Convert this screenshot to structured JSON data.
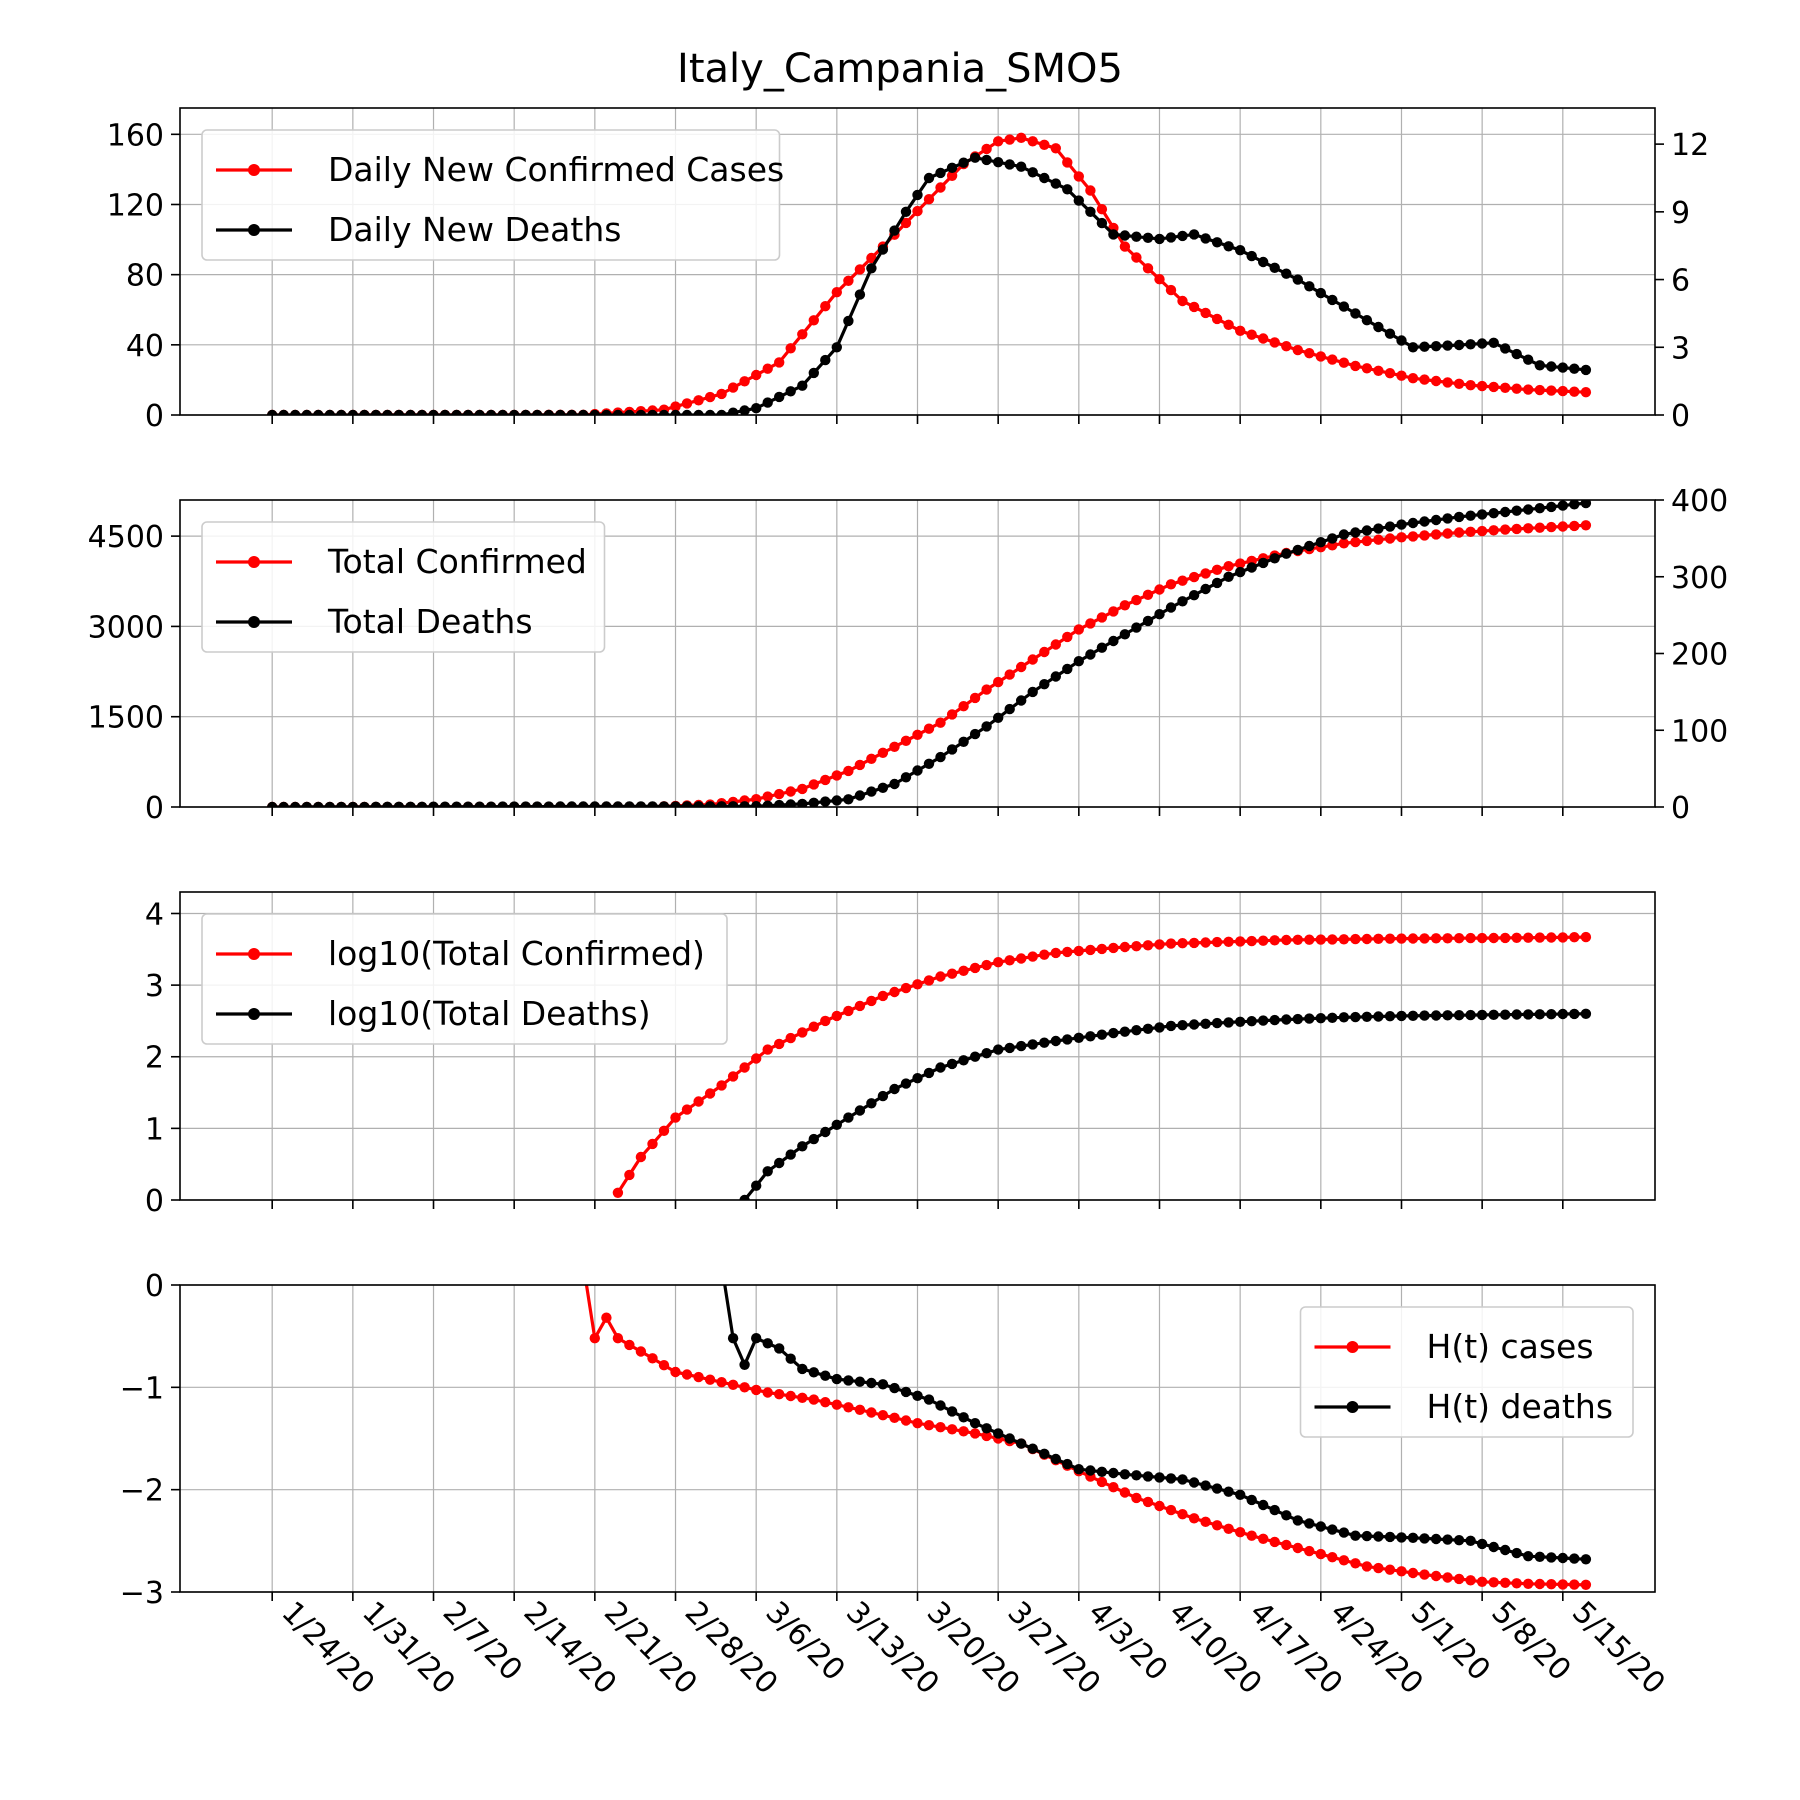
{
  "colors": {
    "cases": "#ff0000",
    "deaths": "#000000",
    "grid": "#b0b0b0"
  },
  "chart_data": [
    {
      "type": "line",
      "title": "Italy_Campania_SMO5",
      "x_dates": [
        "1/24/20",
        "1/31/20",
        "2/7/20",
        "2/14/20",
        "2/21/20",
        "2/28/20",
        "3/6/20",
        "3/13/20",
        "3/20/20",
        "3/27/20",
        "4/3/20",
        "4/10/20",
        "4/17/20",
        "4/24/20",
        "5/1/20",
        "5/8/20",
        "5/15/20"
      ],
      "x_range": [
        "1/16/20",
        "5/23/20"
      ],
      "legend": "upper-left",
      "grid": true,
      "left_axis": {
        "ylim": [
          0,
          175
        ],
        "ticks": [
          "0",
          "40",
          "80",
          "120",
          "160"
        ]
      },
      "right_axis": {
        "ylim": [
          0,
          13.6
        ],
        "ticks": [
          "0",
          "3",
          "6",
          "9",
          "12"
        ]
      },
      "series": [
        {
          "name": "Daily New Confirmed Cases",
          "axis": "left",
          "color": "#ff0000",
          "points": [
            [
              "1/24/20",
              0
            ],
            [
              "2/20/20",
              0.1
            ],
            [
              "2/27/20",
              3
            ],
            [
              "3/3/20",
              12
            ],
            [
              "3/8/20",
              30
            ],
            [
              "3/13/20",
              70
            ],
            [
              "3/17/20",
              96
            ],
            [
              "3/21/20",
              123
            ],
            [
              "3/24/20",
              143
            ],
            [
              "3/27/20",
              156
            ],
            [
              "3/29/20",
              158
            ],
            [
              "4/1/20",
              152
            ],
            [
              "4/4/20",
              128
            ],
            [
              "4/7/20",
              96
            ],
            [
              "4/12/20",
              65
            ],
            [
              "4/17/20",
              48
            ],
            [
              "4/22/20",
              37
            ],
            [
              "4/27/20",
              28
            ],
            [
              "5/2/20",
              21
            ],
            [
              "5/7/20",
              17
            ],
            [
              "5/12/20",
              14.5
            ],
            [
              "5/17/20",
              13
            ]
          ]
        },
        {
          "name": "Daily New Deaths",
          "axis": "right",
          "color": "#000000",
          "points": [
            [
              "1/24/20",
              0
            ],
            [
              "3/3/20",
              0
            ],
            [
              "3/6/20",
              0.3
            ],
            [
              "3/10/20",
              1.3
            ],
            [
              "3/13/20",
              3
            ],
            [
              "3/16/20",
              6.5
            ],
            [
              "3/19/20",
              9
            ],
            [
              "3/21/20",
              10.5
            ],
            [
              "3/25/20",
              11.4
            ],
            [
              "3/29/20",
              11
            ],
            [
              "4/2/20",
              10
            ],
            [
              "4/6/20",
              8
            ],
            [
              "4/10/20",
              7.8
            ],
            [
              "4/13/20",
              8
            ],
            [
              "4/17/20",
              7.3
            ],
            [
              "4/22/20",
              6
            ],
            [
              "4/27/20",
              4.5
            ],
            [
              "5/2/20",
              3
            ],
            [
              "5/6/20",
              3.1
            ],
            [
              "5/9/20",
              3.2
            ],
            [
              "5/13/20",
              2.2
            ],
            [
              "5/17/20",
              2
            ]
          ]
        }
      ]
    },
    {
      "type": "line",
      "legend": "upper-left",
      "grid": true,
      "left_axis": {
        "ylim": [
          0,
          5100
        ],
        "ticks": [
          "0",
          "1500",
          "3000",
          "4500"
        ]
      },
      "right_axis": {
        "ylim": [
          0,
          400
        ],
        "ticks": [
          "0",
          "100",
          "200",
          "300",
          "400"
        ]
      },
      "series": [
        {
          "name": "Total Confirmed",
          "axis": "left",
          "color": "#ff0000",
          "points": [
            [
              "1/24/20",
              0
            ],
            [
              "2/26/20",
              5
            ],
            [
              "3/2/20",
              40
            ],
            [
              "3/6/20",
              130
            ],
            [
              "3/10/20",
              300
            ],
            [
              "3/14/20",
              600
            ],
            [
              "3/18/20",
              1000
            ],
            [
              "3/22/20",
              1400
            ],
            [
              "3/26/20",
              1950
            ],
            [
              "3/30/20",
              2450
            ],
            [
              "4/3/20",
              2950
            ],
            [
              "4/7/20",
              3350
            ],
            [
              "4/11/20",
              3700
            ],
            [
              "4/16/20",
              4000
            ],
            [
              "4/21/20",
              4220
            ],
            [
              "4/26/20",
              4380
            ],
            [
              "5/1/20",
              4480
            ],
            [
              "5/6/20",
              4560
            ],
            [
              "5/11/20",
              4620
            ],
            [
              "5/17/20",
              4680
            ]
          ]
        },
        {
          "name": "Total Deaths",
          "axis": "right",
          "color": "#000000",
          "points": [
            [
              "1/24/20",
              0
            ],
            [
              "3/6/20",
              1
            ],
            [
              "3/10/20",
              4
            ],
            [
              "3/14/20",
              10
            ],
            [
              "3/18/20",
              30
            ],
            [
              "3/22/20",
              65
            ],
            [
              "3/26/20",
              105
            ],
            [
              "3/30/20",
              150
            ],
            [
              "4/3/20",
              190
            ],
            [
              "4/7/20",
              225
            ],
            [
              "4/11/20",
              260
            ],
            [
              "4/16/20",
              300
            ],
            [
              "4/21/20",
              330
            ],
            [
              "4/26/20",
              355
            ],
            [
              "5/1/20",
              368
            ],
            [
              "5/6/20",
              378
            ],
            [
              "5/11/20",
              386
            ],
            [
              "5/17/20",
              396
            ]
          ]
        }
      ]
    },
    {
      "type": "line",
      "legend": "upper-left",
      "grid": true,
      "left_axis": {
        "ylim": [
          0,
          4.3
        ],
        "ticks": [
          "0",
          "1",
          "2",
          "3",
          "4"
        ]
      },
      "series": [
        {
          "name": "log10(Total Confirmed)",
          "axis": "left",
          "color": "#ff0000",
          "points": [
            [
              "2/23/20",
              0.1
            ],
            [
              "2/25/20",
              0.6
            ],
            [
              "2/28/20",
              1.15
            ],
            [
              "3/3/20",
              1.6
            ],
            [
              "3/7/20",
              2.1
            ],
            [
              "3/12/20",
              2.5
            ],
            [
              "3/17/20",
              2.85
            ],
            [
              "3/22/20",
              3.12
            ],
            [
              "3/27/20",
              3.32
            ],
            [
              "4/1/20",
              3.45
            ],
            [
              "4/6/20",
              3.52
            ],
            [
              "4/11/20",
              3.58
            ],
            [
              "4/21/20",
              3.63
            ],
            [
              "5/1/20",
              3.65
            ],
            [
              "5/11/20",
              3.66
            ],
            [
              "5/17/20",
              3.67
            ]
          ]
        },
        {
          "name": "log10(Total Deaths)",
          "axis": "left",
          "color": "#000000",
          "points": [
            [
              "3/5/20",
              0
            ],
            [
              "3/7/20",
              0.4
            ],
            [
              "3/10/20",
              0.75
            ],
            [
              "3/14/20",
              1.15
            ],
            [
              "3/18/20",
              1.55
            ],
            [
              "3/22/20",
              1.85
            ],
            [
              "3/27/20",
              2.1
            ],
            [
              "4/1/20",
              2.22
            ],
            [
              "4/6/20",
              2.33
            ],
            [
              "4/11/20",
              2.43
            ],
            [
              "4/16/20",
              2.48
            ],
            [
              "4/21/20",
              2.52
            ],
            [
              "4/26/20",
              2.55
            ],
            [
              "5/1/20",
              2.57
            ],
            [
              "5/6/20",
              2.58
            ],
            [
              "5/17/20",
              2.6
            ]
          ]
        }
      ]
    },
    {
      "type": "line",
      "legend": "upper-right",
      "grid": true,
      "left_axis": {
        "ylim": [
          -3,
          0
        ],
        "ticks": [
          "0",
          "−1",
          "−2",
          "−3"
        ]
      },
      "series": [
        {
          "name": "H(t) cases",
          "axis": "left",
          "color": "#ff0000",
          "points": [
            [
              "2/20/20",
              0.2
            ],
            [
              "2/21/20",
              -0.52
            ],
            [
              "2/22/20",
              -0.32
            ],
            [
              "2/23/20",
              -0.52
            ],
            [
              "2/25/20",
              -0.65
            ],
            [
              "2/28/20",
              -0.85
            ],
            [
              "3/3/20",
              -0.95
            ],
            [
              "3/7/20",
              -1.05
            ],
            [
              "3/11/20",
              -1.12
            ],
            [
              "3/15/20",
              -1.22
            ],
            [
              "3/20/20",
              -1.35
            ],
            [
              "3/25/20",
              -1.45
            ],
            [
              "3/29/20",
              -1.55
            ],
            [
              "4/3/20",
              -1.82
            ],
            [
              "4/8/20",
              -2.08
            ],
            [
              "4/13/20",
              -2.28
            ],
            [
              "4/18/20",
              -2.45
            ],
            [
              "4/23/20",
              -2.6
            ],
            [
              "4/28/20",
              -2.75
            ],
            [
              "5/3/20",
              -2.83
            ],
            [
              "5/8/20",
              -2.9
            ],
            [
              "5/12/20",
              -2.92
            ],
            [
              "5/17/20",
              -2.93
            ]
          ]
        },
        {
          "name": "H(t) deaths",
          "axis": "left",
          "color": "#000000",
          "points": [
            [
              "3/3/20",
              0.2
            ],
            [
              "3/4/20",
              -0.52
            ],
            [
              "3/5/20",
              -0.78
            ],
            [
              "3/6/20",
              -0.52
            ],
            [
              "3/8/20",
              -0.62
            ],
            [
              "3/10/20",
              -0.82
            ],
            [
              "3/13/20",
              -0.92
            ],
            [
              "3/17/20",
              -0.97
            ],
            [
              "3/21/20",
              -1.12
            ],
            [
              "3/25/20",
              -1.35
            ],
            [
              "3/29/20",
              -1.55
            ],
            [
              "4/3/20",
              -1.8
            ],
            [
              "4/7/20",
              -1.85
            ],
            [
              "4/12/20",
              -1.9
            ],
            [
              "4/17/20",
              -2.05
            ],
            [
              "4/22/20",
              -2.3
            ],
            [
              "4/27/20",
              -2.45
            ],
            [
              "5/2/20",
              -2.47
            ],
            [
              "5/7/20",
              -2.5
            ],
            [
              "5/12/20",
              -2.65
            ],
            [
              "5/17/20",
              -2.68
            ]
          ]
        }
      ]
    }
  ]
}
